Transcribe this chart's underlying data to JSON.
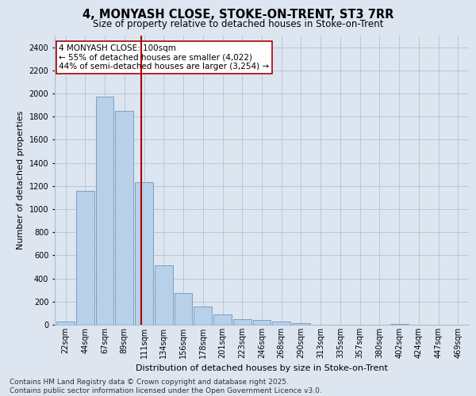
{
  "title": "4, MONYASH CLOSE, STOKE-ON-TRENT, ST3 7RR",
  "subtitle": "Size of property relative to detached houses in Stoke-on-Trent",
  "xlabel": "Distribution of detached houses by size in Stoke-on-Trent",
  "ylabel": "Number of detached properties",
  "categories": [
    "22sqm",
    "44sqm",
    "67sqm",
    "89sqm",
    "111sqm",
    "134sqm",
    "156sqm",
    "178sqm",
    "201sqm",
    "223sqm",
    "246sqm",
    "268sqm",
    "290sqm",
    "313sqm",
    "335sqm",
    "357sqm",
    "380sqm",
    "402sqm",
    "424sqm",
    "447sqm",
    "469sqm"
  ],
  "values": [
    30,
    1160,
    1970,
    1850,
    1230,
    515,
    275,
    155,
    90,
    50,
    40,
    25,
    15,
    0,
    0,
    0,
    0,
    10,
    0,
    0,
    0
  ],
  "bar_color": "#b8d0e8",
  "bar_edge_color": "#6898c0",
  "vline_x": 3.85,
  "vline_color": "#aa0000",
  "annotation_line1": "4 MONYASH CLOSE: 100sqm",
  "annotation_line2": "← 55% of detached houses are smaller (4,022)",
  "annotation_line3": "44% of semi-detached houses are larger (3,254) →",
  "annotation_box_color": "#ffffff",
  "annotation_box_edge": "#aa0000",
  "ylim": [
    0,
    2500
  ],
  "yticks": [
    0,
    200,
    400,
    600,
    800,
    1000,
    1200,
    1400,
    1600,
    1800,
    2000,
    2200,
    2400
  ],
  "background_color": "#dde6f0",
  "footer_line1": "Contains HM Land Registry data © Crown copyright and database right 2025.",
  "footer_line2": "Contains public sector information licensed under the Open Government Licence v3.0.",
  "title_fontsize": 10.5,
  "subtitle_fontsize": 8.5,
  "ylabel_fontsize": 8,
  "xlabel_fontsize": 8,
  "footer_fontsize": 6.5,
  "tick_fontsize": 7,
  "annot_fontsize": 7.5
}
